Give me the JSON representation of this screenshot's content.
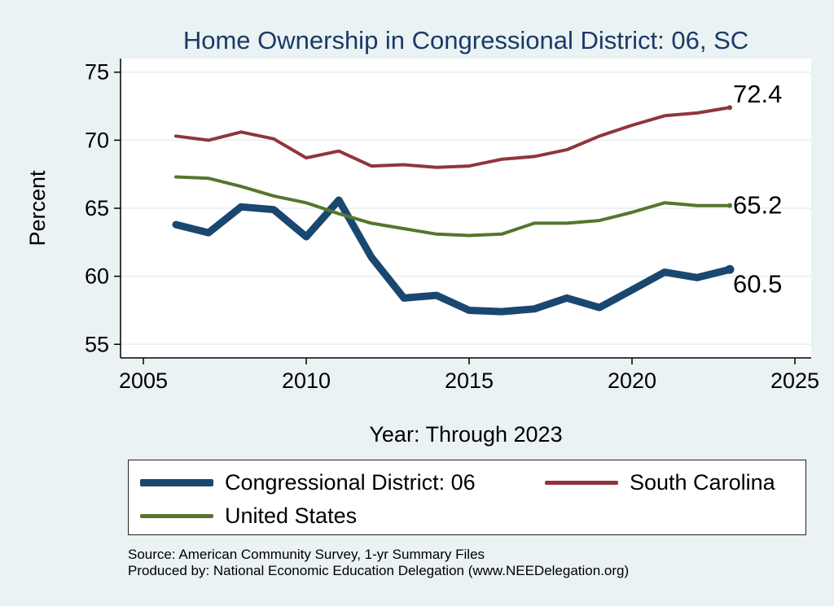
{
  "chart_data": {
    "type": "line",
    "title": "Home Ownership in Congressional District:  06, SC",
    "xlabel": "Year: Through 2023",
    "ylabel": "Percent",
    "xlim": [
      2004.3,
      2025.5
    ],
    "ylim": [
      54,
      76
    ],
    "xticks": [
      2005,
      2010,
      2015,
      2020,
      2025
    ],
    "yticks": [
      55,
      60,
      65,
      70,
      75
    ],
    "grid": true,
    "x": [
      2006,
      2007,
      2008,
      2009,
      2010,
      2011,
      2012,
      2013,
      2014,
      2015,
      2016,
      2017,
      2018,
      2019,
      2020,
      2021,
      2022,
      2023
    ],
    "series": [
      {
        "name": "Congressional District:  06",
        "color": "#1a476f",
        "width": 9,
        "values": [
          63.8,
          63.2,
          65.1,
          64.9,
          62.9,
          65.6,
          61.4,
          58.4,
          58.6,
          57.5,
          57.4,
          57.6,
          58.4,
          57.7,
          59.0,
          60.3,
          59.9,
          60.5
        ],
        "end_label": "60.5"
      },
      {
        "name": "South Carolina",
        "color": "#90353b",
        "width": 4,
        "values": [
          70.3,
          70.0,
          70.6,
          70.1,
          68.7,
          69.2,
          68.1,
          68.2,
          68.0,
          68.1,
          68.6,
          68.8,
          69.3,
          70.3,
          71.1,
          71.8,
          72.0,
          72.4
        ],
        "end_label": "72.4"
      },
      {
        "name": "United States",
        "color": "#55752f",
        "width": 4,
        "values": [
          67.3,
          67.2,
          66.6,
          65.9,
          65.4,
          64.6,
          63.9,
          63.5,
          63.1,
          63.0,
          63.1,
          63.9,
          63.9,
          64.1,
          64.7,
          65.4,
          65.2,
          65.2
        ],
        "end_label": "65.2"
      }
    ],
    "source": "Source: American Community Survey, 1-yr Summary Files",
    "producer": "Produced by: National Economic Education Delegation (www.NEEDelegation.org)"
  }
}
